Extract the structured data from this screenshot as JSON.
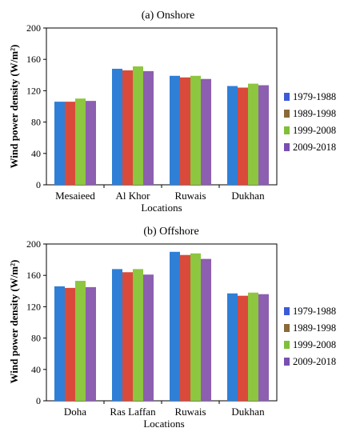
{
  "chart_data": [
    {
      "type": "bar",
      "title": "(a) Onshore",
      "xlabel": "Locations",
      "ylabel": "Wind power density (W/m²)",
      "ylim": [
        0,
        200
      ],
      "yticks": [
        "0",
        "40",
        "80",
        "120",
        "160",
        "200"
      ],
      "categories": [
        "Mesaieed",
        "Al Khor",
        "Ruwais",
        "Dukhan"
      ],
      "series": [
        {
          "name": "1979-1988",
          "values": [
            106,
            148,
            139,
            126
          ]
        },
        {
          "name": "1989-1998",
          "values": [
            106,
            146,
            137,
            124
          ]
        },
        {
          "name": "1999-2008",
          "values": [
            110,
            151,
            139,
            129
          ]
        },
        {
          "name": "2009-2018",
          "values": [
            107,
            145,
            135,
            127
          ]
        }
      ],
      "legend": "right",
      "grid": false
    },
    {
      "type": "bar",
      "title": "(b) Offshore",
      "xlabel": "Locations",
      "ylabel": "Wind power density (W/m²)",
      "ylim": [
        0,
        200
      ],
      "yticks": [
        "0",
        "40",
        "80",
        "120",
        "160",
        "200"
      ],
      "categories": [
        "Doha",
        "Ras Laffan",
        "Ruwais",
        "Dukhan"
      ],
      "series": [
        {
          "name": "1979-1988",
          "values": [
            146,
            168,
            190,
            137
          ]
        },
        {
          "name": "1989-1998",
          "values": [
            144,
            164,
            186,
            134
          ]
        },
        {
          "name": "1999-2008",
          "values": [
            153,
            168,
            188,
            138
          ]
        },
        {
          "name": "2009-2018",
          "values": [
            145,
            161,
            181,
            136
          ]
        }
      ],
      "legend": "right",
      "grid": false
    }
  ],
  "colors": {
    "series": [
      "#2f7fd6",
      "#d94a3a",
      "#8dc63f",
      "#8c5fb0"
    ],
    "legend_swatches": [
      "#3b5bd6",
      "#8a6a3a",
      "#7fbf3a",
      "#7a4fb0"
    ]
  }
}
